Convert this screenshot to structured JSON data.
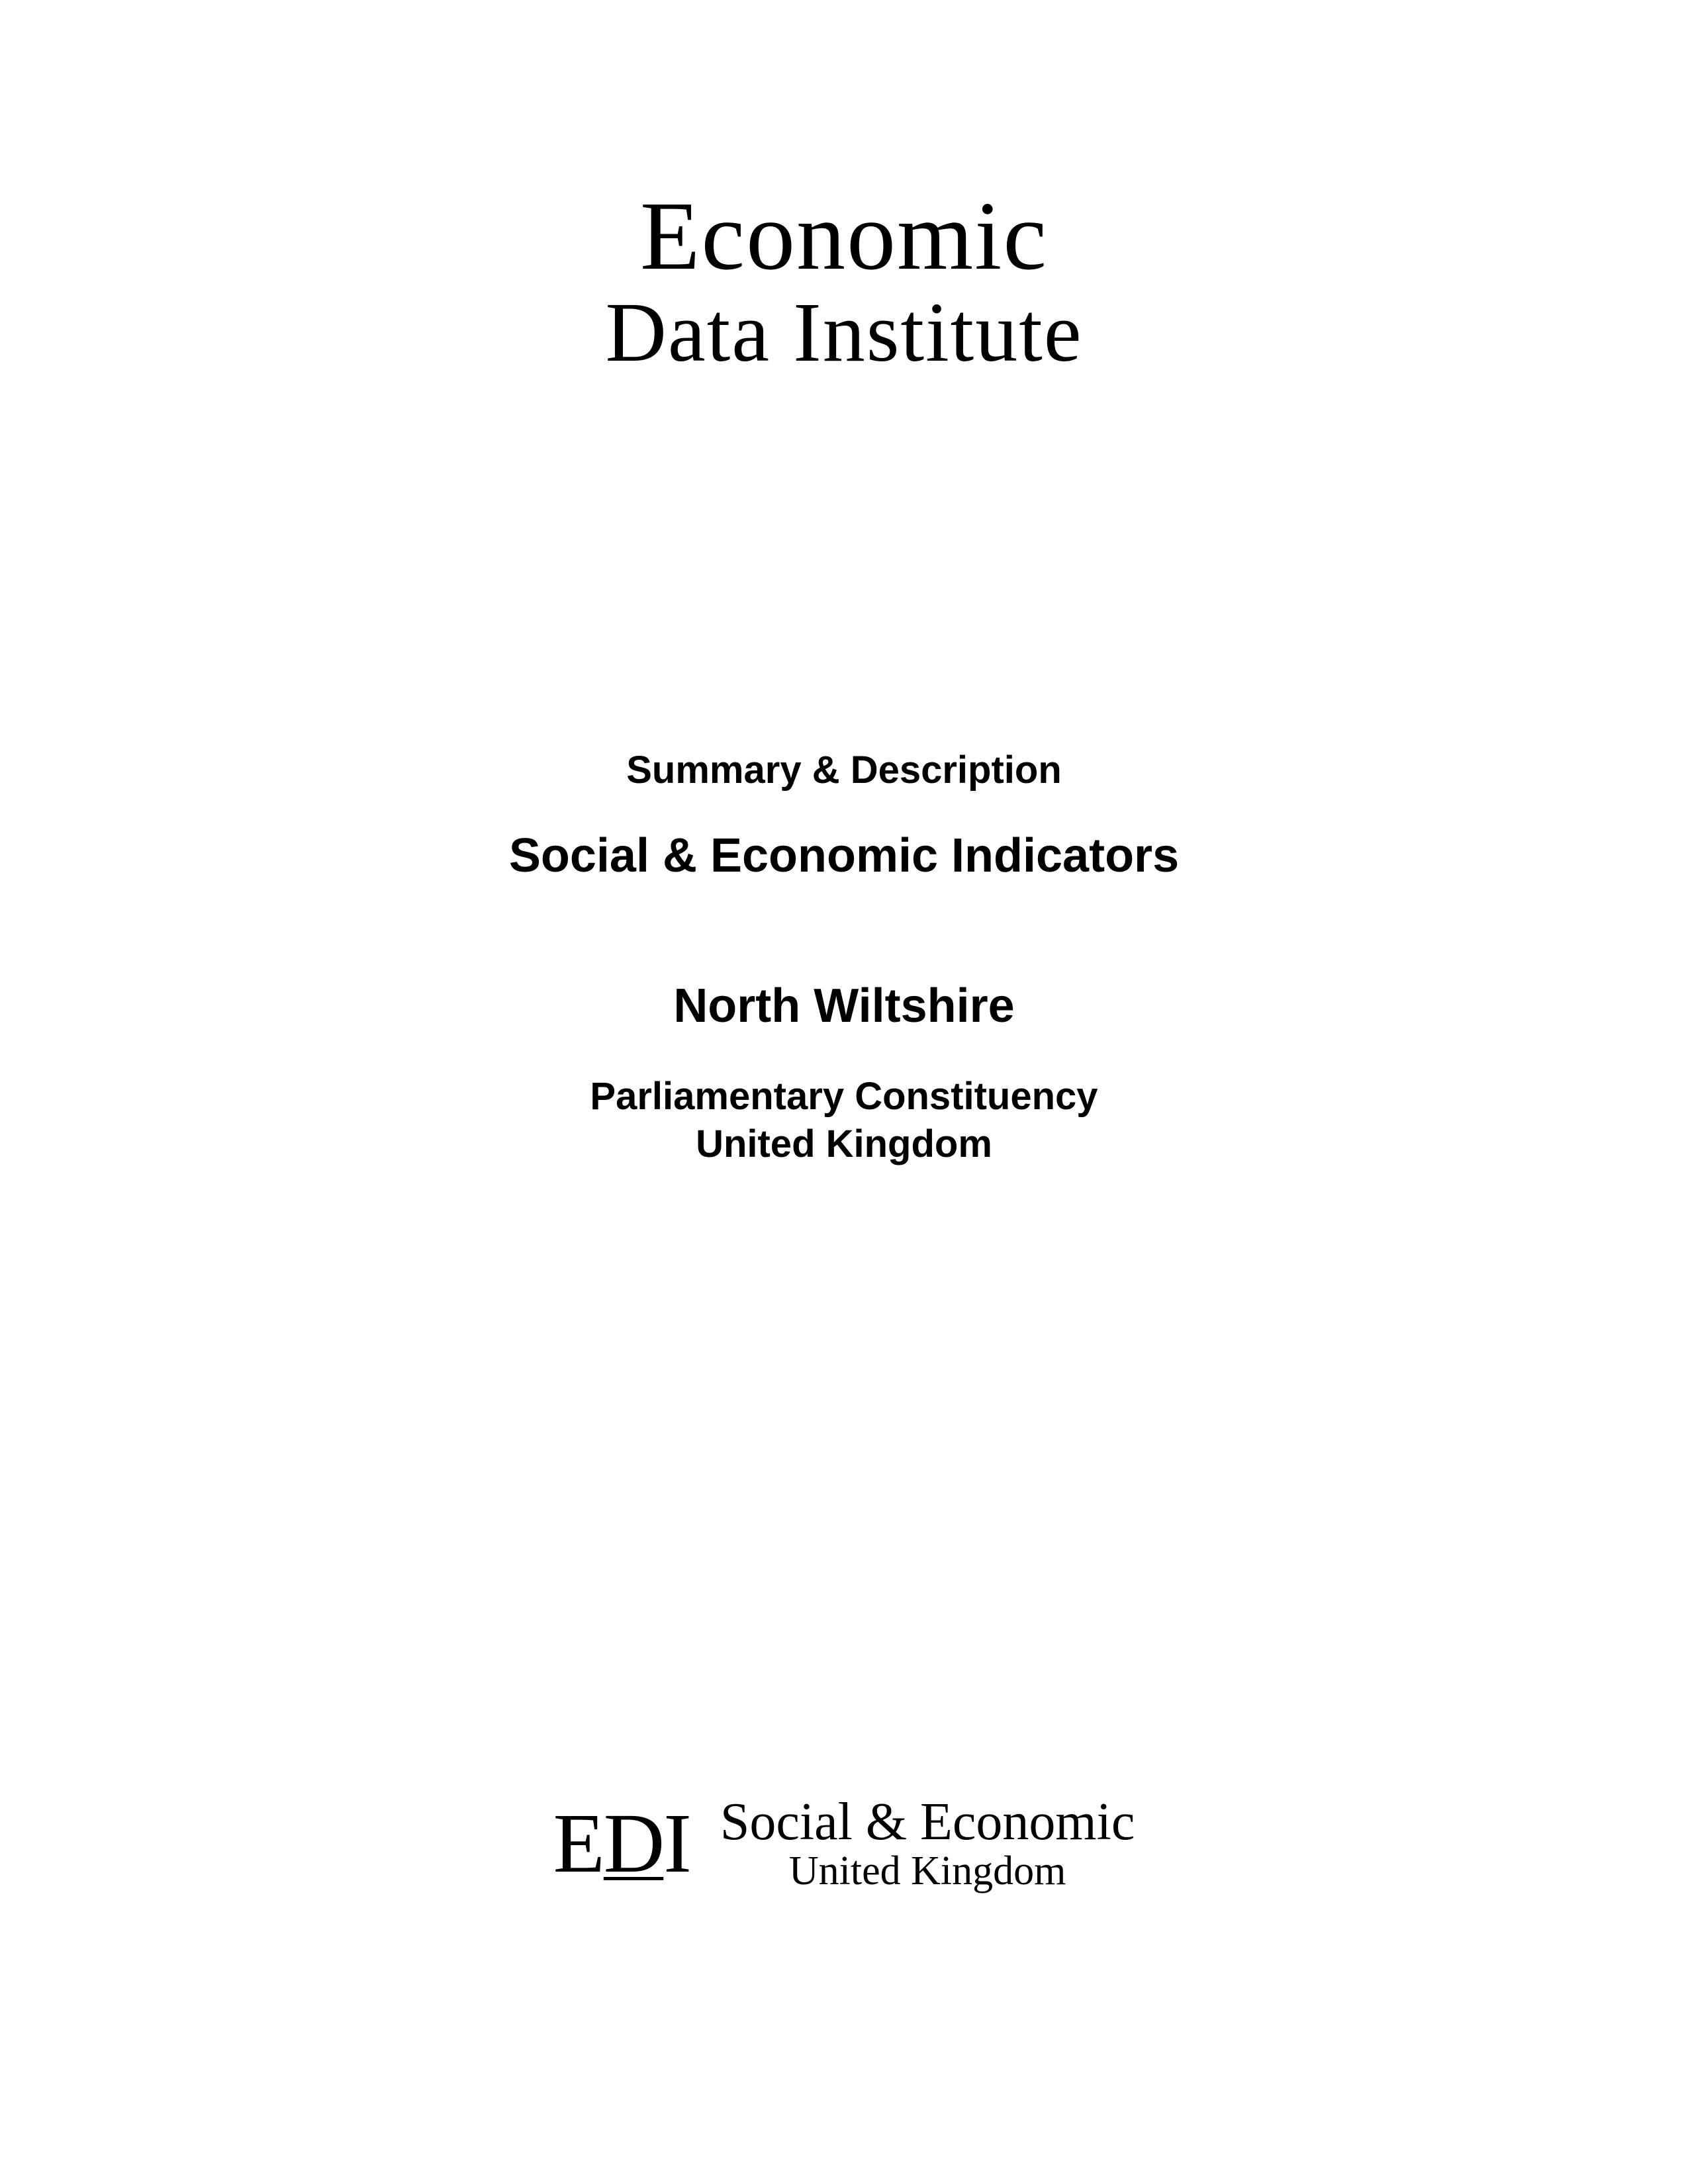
{
  "header": {
    "line1": "Economic",
    "line2": "Data Institute"
  },
  "content": {
    "summary": "Summary & Description",
    "main_title": "Social & Economic Indicators",
    "region": "North Wiltshire",
    "subtitle1": "Parliamentary Constituency",
    "subtitle2": "United Kingdom"
  },
  "footer": {
    "abbrev_e": "E",
    "abbrev_d": "D",
    "abbrev_i": "I",
    "line1": "Social & Economic",
    "line2": "United Kingdom"
  },
  "colors": {
    "background": "#ffffff",
    "text": "#000000"
  }
}
